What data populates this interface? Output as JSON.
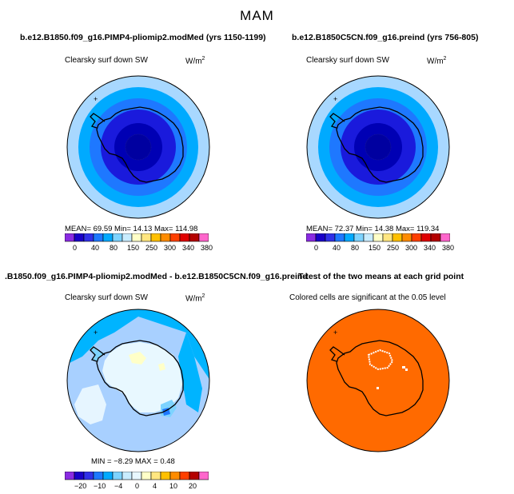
{
  "main_title": "MAM",
  "panels": {
    "tl": {
      "title": "b.e12.B1850.f09_g16.PIMP4-pliomip2.modMed (yrs 1150-1199)",
      "variable": "Clearsky surf down SW",
      "units": "W/m",
      "units_exp": "2",
      "stats": "MEAN=   69.59   Min=   14.13   Max=  114.98",
      "cb_labels": [
        "0",
        "40",
        "80",
        "150",
        "250",
        "300",
        "340",
        "380"
      ]
    },
    "tr": {
      "title": "b.e12.B1850C5CN.f09_g16.preind (yrs 756-805)",
      "variable": "Clearsky surf down SW",
      "units": "W/m",
      "units_exp": "2",
      "stats": "MEAN=   72.37   Min=   14.38   Max=  119.34",
      "cb_labels": [
        "0",
        "40",
        "80",
        "150",
        "250",
        "300",
        "340",
        "380"
      ]
    },
    "bl": {
      "title": ".B1850.f09_g16.PIMP4-pliomip2.modMed - b.e12.B1850C5CN.f09_g16.preind",
      "variable": "Clearsky surf down SW",
      "units": "W/m",
      "units_exp": "2",
      "stats": "MIN =  −8.29  MAX =    0.48",
      "cb_labels": [
        "−20",
        "−10",
        "−4",
        "0",
        "4",
        "10",
        "20"
      ]
    },
    "br": {
      "title": "T-test of the two means at each grid point",
      "subtitle": "Colored cells are significant at the 0.05 level"
    }
  },
  "colors": {
    "abs_scale": [
      "#8a2be2",
      "#1a00c8",
      "#3030e8",
      "#1e78ff",
      "#00aaff",
      "#7dd3ff",
      "#c8ecff",
      "#ffffc8",
      "#ffe680",
      "#ffc000",
      "#ff8c00",
      "#ff4000",
      "#e00000",
      "#b40000",
      "#ff66cc"
    ],
    "diff_scale": [
      "#8a2be2",
      "#1a00c8",
      "#3030e8",
      "#1e78ff",
      "#00aaff",
      "#7dd3ff",
      "#c8ecff",
      "#e8f8ff",
      "#ffffc8",
      "#ffe680",
      "#ffc000",
      "#ff8c00",
      "#ff4000",
      "#b40000",
      "#ff66cc"
    ],
    "ttest_fill": "#ff6a00"
  }
}
